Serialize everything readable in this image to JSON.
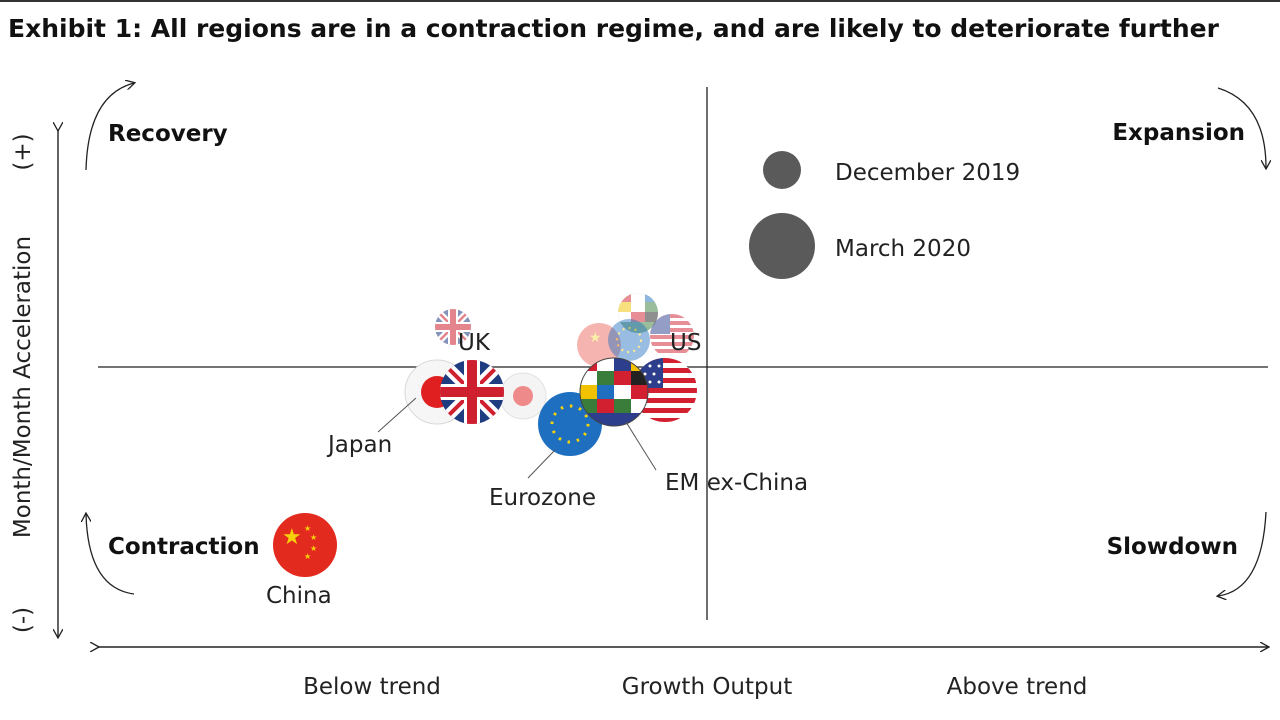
{
  "title": "Exhibit 1: All regions are in a contraction regime, and are likely to deteriorate further",
  "chart_data": {
    "type": "scatter",
    "xlabel": "Growth Output",
    "x_ticks": [
      "Below trend",
      "Above trend"
    ],
    "ylabel": "Month/Month Acceleration",
    "y_ticks": [
      "(+)",
      "(-)"
    ],
    "quadrants": [
      "Recovery",
      "Expansion",
      "Contraction",
      "Slowdown"
    ],
    "legend": [
      {
        "label": "December 2019",
        "size": "small"
      },
      {
        "label": "March 2020",
        "size": "large"
      }
    ],
    "series": [
      {
        "name": "December 2019",
        "points": [
          {
            "label": "UK",
            "x": -0.42,
            "y": 0.18,
            "flag": "uk-flag"
          },
          {
            "label": "Japan",
            "x": -0.3,
            "y": -0.12,
            "flag": "japan-flag"
          },
          {
            "label": "China",
            "x": -0.2,
            "y": 0.1,
            "flag": "china-flag"
          },
          {
            "label": "Eurozone",
            "x": -0.13,
            "y": 0.11,
            "flag": "eu-flag"
          },
          {
            "label": "EM ex-China",
            "x": -0.11,
            "y": 0.25,
            "flag": "em-flags"
          },
          {
            "label": "US",
            "x": -0.05,
            "y": 0.13,
            "flag": "us-flag"
          }
        ]
      },
      {
        "name": "March 2020",
        "points": [
          {
            "label": "UK",
            "x": -0.38,
            "y": -0.1,
            "flag": "uk-flag"
          },
          {
            "label": "Japan",
            "x": -0.48,
            "y": -0.1,
            "flag": "japan-flag"
          },
          {
            "label": "China",
            "x": -0.67,
            "y": -0.68,
            "flag": "china-flag"
          },
          {
            "label": "Eurozone",
            "x": -0.22,
            "y": -0.22,
            "flag": "eu-flag"
          },
          {
            "label": "EM ex-China",
            "x": -0.15,
            "y": -0.1,
            "flag": "em-flags"
          },
          {
            "label": "US",
            "x": -0.06,
            "y": -0.09,
            "flag": "us-flag"
          }
        ]
      }
    ],
    "colors": {
      "china": "#e32a1e",
      "eu": "#1f6fc0",
      "us_red": "#d22030",
      "us_blue": "#2c3e8c",
      "uk_blue": "#1f3c80",
      "uk_red": "#cf2030",
      "japan": "#e02020",
      "legend": "#5a5a5a"
    }
  }
}
